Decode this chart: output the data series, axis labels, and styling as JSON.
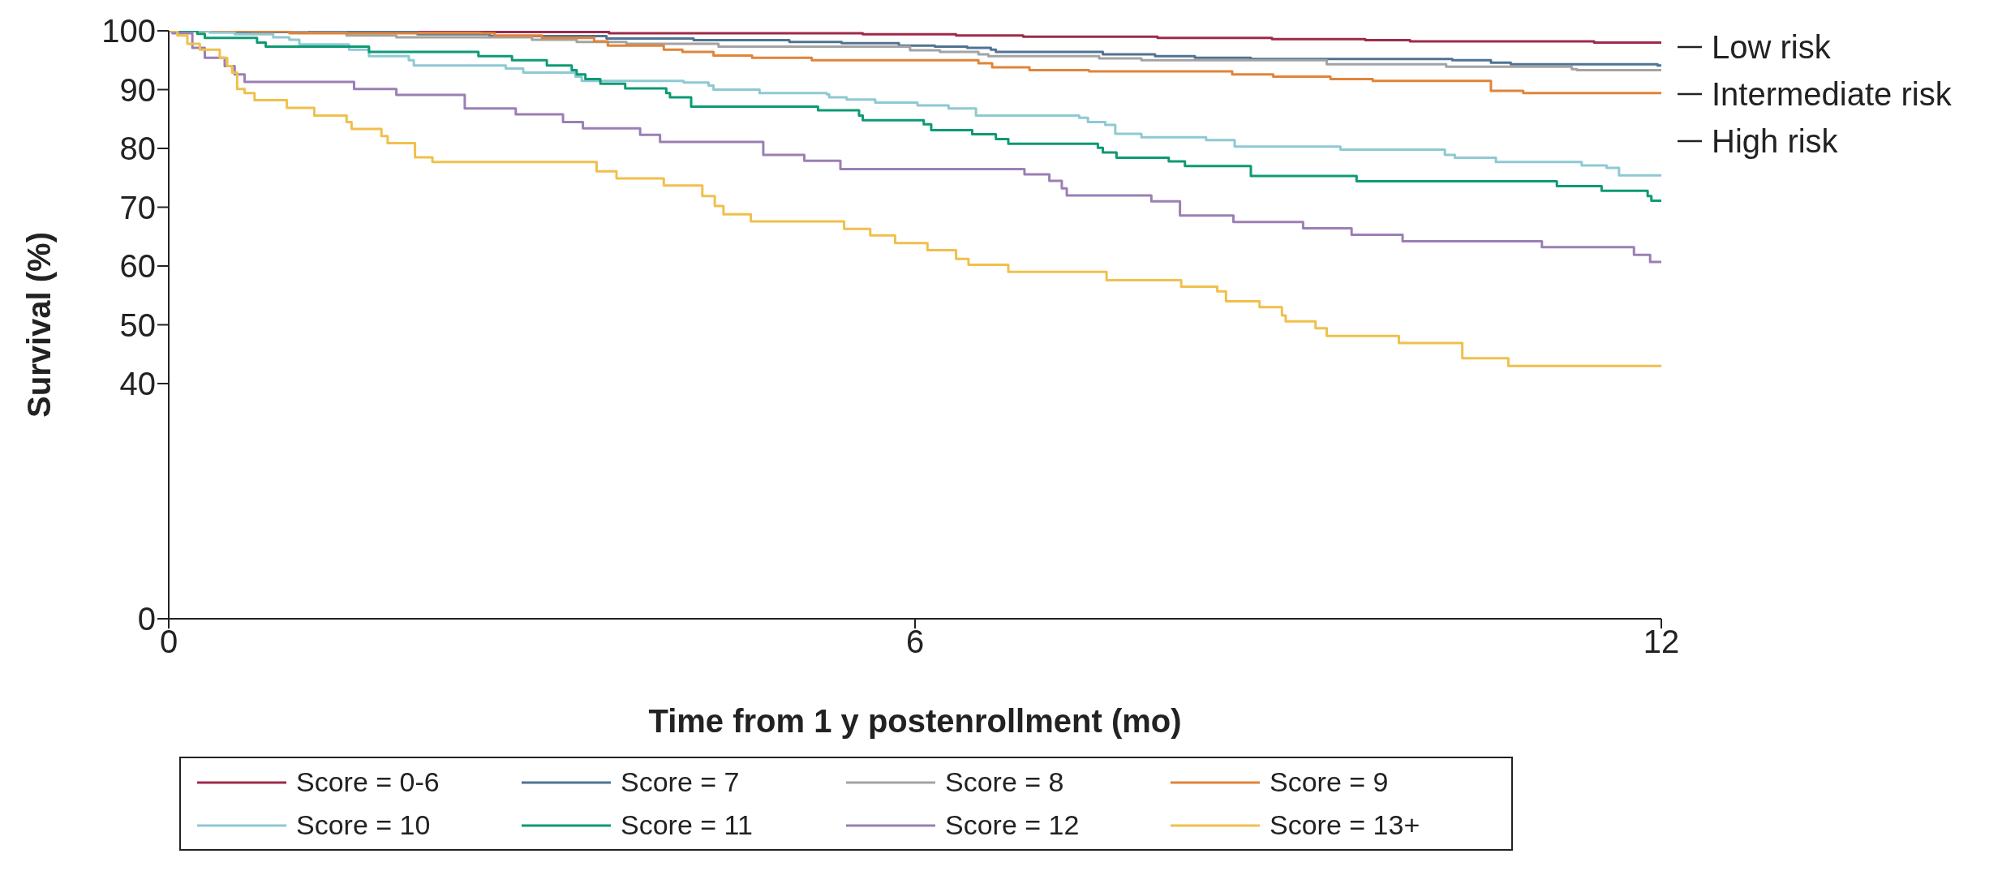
{
  "chart_data": {
    "type": "step",
    "xlabel": "Time from 1 y postenrollment (mo)",
    "ylabel": "Survival (%)",
    "xlim": [
      0,
      12
    ],
    "xticks": [
      0,
      6,
      12
    ],
    "ylim": [
      0,
      100
    ],
    "yticks": [
      0,
      40,
      50,
      60,
      70,
      80,
      90,
      100
    ],
    "legend": "bottom",
    "annotations": [
      "Low risk",
      "Intermediate risk",
      "High risk"
    ],
    "series": [
      {
        "name": "Score = 0-6",
        "color": "#9e2a4a",
        "x": [
          0,
          2.52,
          3.54,
          5.58,
          6.33,
          6.87,
          7.95,
          8.87,
          9.62,
          9.98,
          11.46,
          12
        ],
        "values": [
          100,
          99.8,
          99.6,
          99.4,
          99.2,
          99.0,
          98.8,
          98.6,
          98.4,
          98.2,
          98.0,
          98.0
        ]
      },
      {
        "name": "Score = 7",
        "color": "#4f7394",
        "x": [
          0,
          0.53,
          2.0,
          2.58,
          3.52,
          4.22,
          4.99,
          5.41,
          5.87,
          6.16,
          6.42,
          6.61,
          6.65,
          7.51,
          7.93,
          8.25,
          8.7,
          10.32,
          10.63,
          10.79,
          11.97,
          12
        ],
        "values": [
          100,
          99.8,
          99.4,
          99.1,
          98.7,
          98.4,
          98.1,
          97.9,
          97.5,
          97.3,
          97.1,
          96.8,
          96.4,
          96.0,
          95.7,
          95.4,
          95.2,
          95.0,
          94.6,
          94.3,
          94.1,
          94.1
        ]
      },
      {
        "name": "Score = 8",
        "color": "#a3a3a3",
        "x": [
          0,
          1.11,
          1.43,
          1.83,
          2.92,
          3.28,
          3.68,
          4.42,
          5.96,
          6.2,
          6.51,
          6.59,
          7.48,
          7.82,
          9.31,
          10.27,
          11.28,
          11.32,
          12
        ],
        "values": [
          100,
          99.7,
          99.2,
          98.9,
          98.5,
          98.1,
          97.8,
          97.3,
          96.7,
          96.4,
          96.0,
          95.7,
          95.3,
          95.0,
          94.3,
          93.9,
          93.5,
          93.3,
          93.3
        ]
      },
      {
        "name": "Score = 9",
        "color": "#e0843a",
        "x": [
          0,
          0.67,
          0.97,
          2.62,
          3.0,
          3.42,
          3.53,
          3.98,
          4.13,
          4.38,
          4.69,
          5.17,
          6.51,
          6.62,
          6.92,
          7.4,
          8.55,
          8.88,
          9.34,
          9.68,
          10.63,
          10.89,
          12
        ],
        "values": [
          100,
          99.9,
          99.6,
          99.2,
          98.8,
          98.2,
          97.5,
          96.8,
          96.4,
          95.8,
          95.4,
          95.0,
          94.5,
          93.8,
          93.3,
          93.1,
          92.6,
          92.2,
          91.8,
          91.5,
          89.8,
          89.4,
          89.4
        ]
      },
      {
        "name": "Score = 10",
        "color": "#8ec9d3",
        "x": [
          0,
          0.33,
          0.53,
          0.84,
          0.97,
          1.05,
          1.45,
          1.61,
          1.93,
          1.97,
          2.71,
          2.85,
          3.27,
          3.32,
          4.14,
          4.34,
          4.38,
          4.75,
          5.29,
          5.31,
          5.45,
          5.68,
          6.02,
          6.27,
          6.49,
          7.32,
          7.39,
          7.53,
          7.61,
          7.82,
          8.34,
          8.57,
          9.42,
          10.26,
          10.34,
          10.67,
          11.36,
          11.56,
          11.66,
          12
        ],
        "values": [
          100,
          99.7,
          99.4,
          98.9,
          98.5,
          97.7,
          96.8,
          95.7,
          95.0,
          94.1,
          93.6,
          92.9,
          92.2,
          91.5,
          91.2,
          90.7,
          90.0,
          89.4,
          89.2,
          88.7,
          88.3,
          87.8,
          87.3,
          86.8,
          85.6,
          85.2,
          84.5,
          84.0,
          82.5,
          81.9,
          81.4,
          80.3,
          79.8,
          78.9,
          78.4,
          77.7,
          77.1,
          76.7,
          75.4,
          75.4
        ]
      },
      {
        "name": "Score = 11",
        "color": "#0e9a74",
        "x": [
          0,
          0.23,
          0.29,
          0.71,
          0.78,
          1.61,
          2.49,
          2.76,
          3.04,
          3.24,
          3.28,
          3.35,
          3.47,
          3.67,
          4.0,
          4.03,
          4.2,
          5.22,
          5.55,
          5.58,
          6.07,
          6.13,
          6.46,
          6.65,
          6.75,
          7.47,
          7.51,
          7.62,
          8.04,
          8.17,
          8.7,
          9.55,
          11.16,
          11.52,
          11.89,
          11.92,
          12
        ],
        "values": [
          100,
          99.5,
          98.8,
          98.0,
          97.3,
          96.4,
          95.7,
          95.0,
          94.1,
          93.3,
          92.6,
          91.8,
          91.0,
          90.2,
          89.4,
          88.7,
          87.1,
          86.5,
          85.6,
          84.8,
          84.1,
          83.1,
          82.4,
          81.6,
          80.8,
          80.1,
          79.3,
          78.4,
          77.8,
          77.0,
          75.3,
          74.4,
          73.6,
          72.8,
          71.9,
          71.1,
          71.1
        ]
      },
      {
        "name": "Score = 12",
        "color": "#9b7fb4",
        "x": [
          0,
          0.03,
          0.19,
          0.29,
          0.45,
          0.53,
          0.61,
          1.49,
          1.83,
          2.38,
          2.79,
          3.17,
          3.33,
          3.79,
          3.95,
          4.78,
          5.11,
          5.4,
          6.88,
          7.08,
          7.18,
          7.22,
          7.9,
          8.13,
          8.56,
          9.12,
          9.51,
          9.92,
          11.04,
          11.78,
          11.91,
          12
        ],
        "values": [
          100,
          99.6,
          97.1,
          95.4,
          94.0,
          92.6,
          91.3,
          90.1,
          89.1,
          86.8,
          85.8,
          84.5,
          83.4,
          82.3,
          81.1,
          78.9,
          77.9,
          76.5,
          75.6,
          74.5,
          73.2,
          72.0,
          71.0,
          68.6,
          67.5,
          66.4,
          65.3,
          64.2,
          63.2,
          61.9,
          60.7,
          60.7
        ]
      },
      {
        "name": "Score = 13+",
        "color": "#f0c04c",
        "x": [
          0,
          0.07,
          0.15,
          0.25,
          0.41,
          0.47,
          0.51,
          0.55,
          0.61,
          0.69,
          0.95,
          1.17,
          1.43,
          1.47,
          1.71,
          1.76,
          1.98,
          2.12,
          3.44,
          3.6,
          3.98,
          4.29,
          4.39,
          4.46,
          4.68,
          5.43,
          5.64,
          5.84,
          6.1,
          6.33,
          6.43,
          6.75,
          7.54,
          8.14,
          8.43,
          8.5,
          8.77,
          8.95,
          8.98,
          9.22,
          9.31,
          9.89,
          10.4,
          10.77,
          12
        ],
        "values": [
          100,
          99.2,
          97.8,
          96.8,
          95.4,
          94.0,
          92.9,
          90.1,
          89.4,
          88.2,
          86.9,
          85.6,
          84.5,
          83.3,
          82.1,
          80.9,
          78.5,
          77.7,
          76.1,
          74.9,
          73.7,
          71.9,
          70.2,
          68.8,
          67.6,
          66.3,
          65.2,
          63.9,
          62.7,
          61.2,
          60.2,
          59.0,
          57.6,
          56.5,
          55.7,
          54.0,
          53.0,
          51.6,
          50.6,
          49.4,
          48.1,
          46.9,
          44.3,
          43.0,
          43.0
        ]
      }
    ]
  }
}
